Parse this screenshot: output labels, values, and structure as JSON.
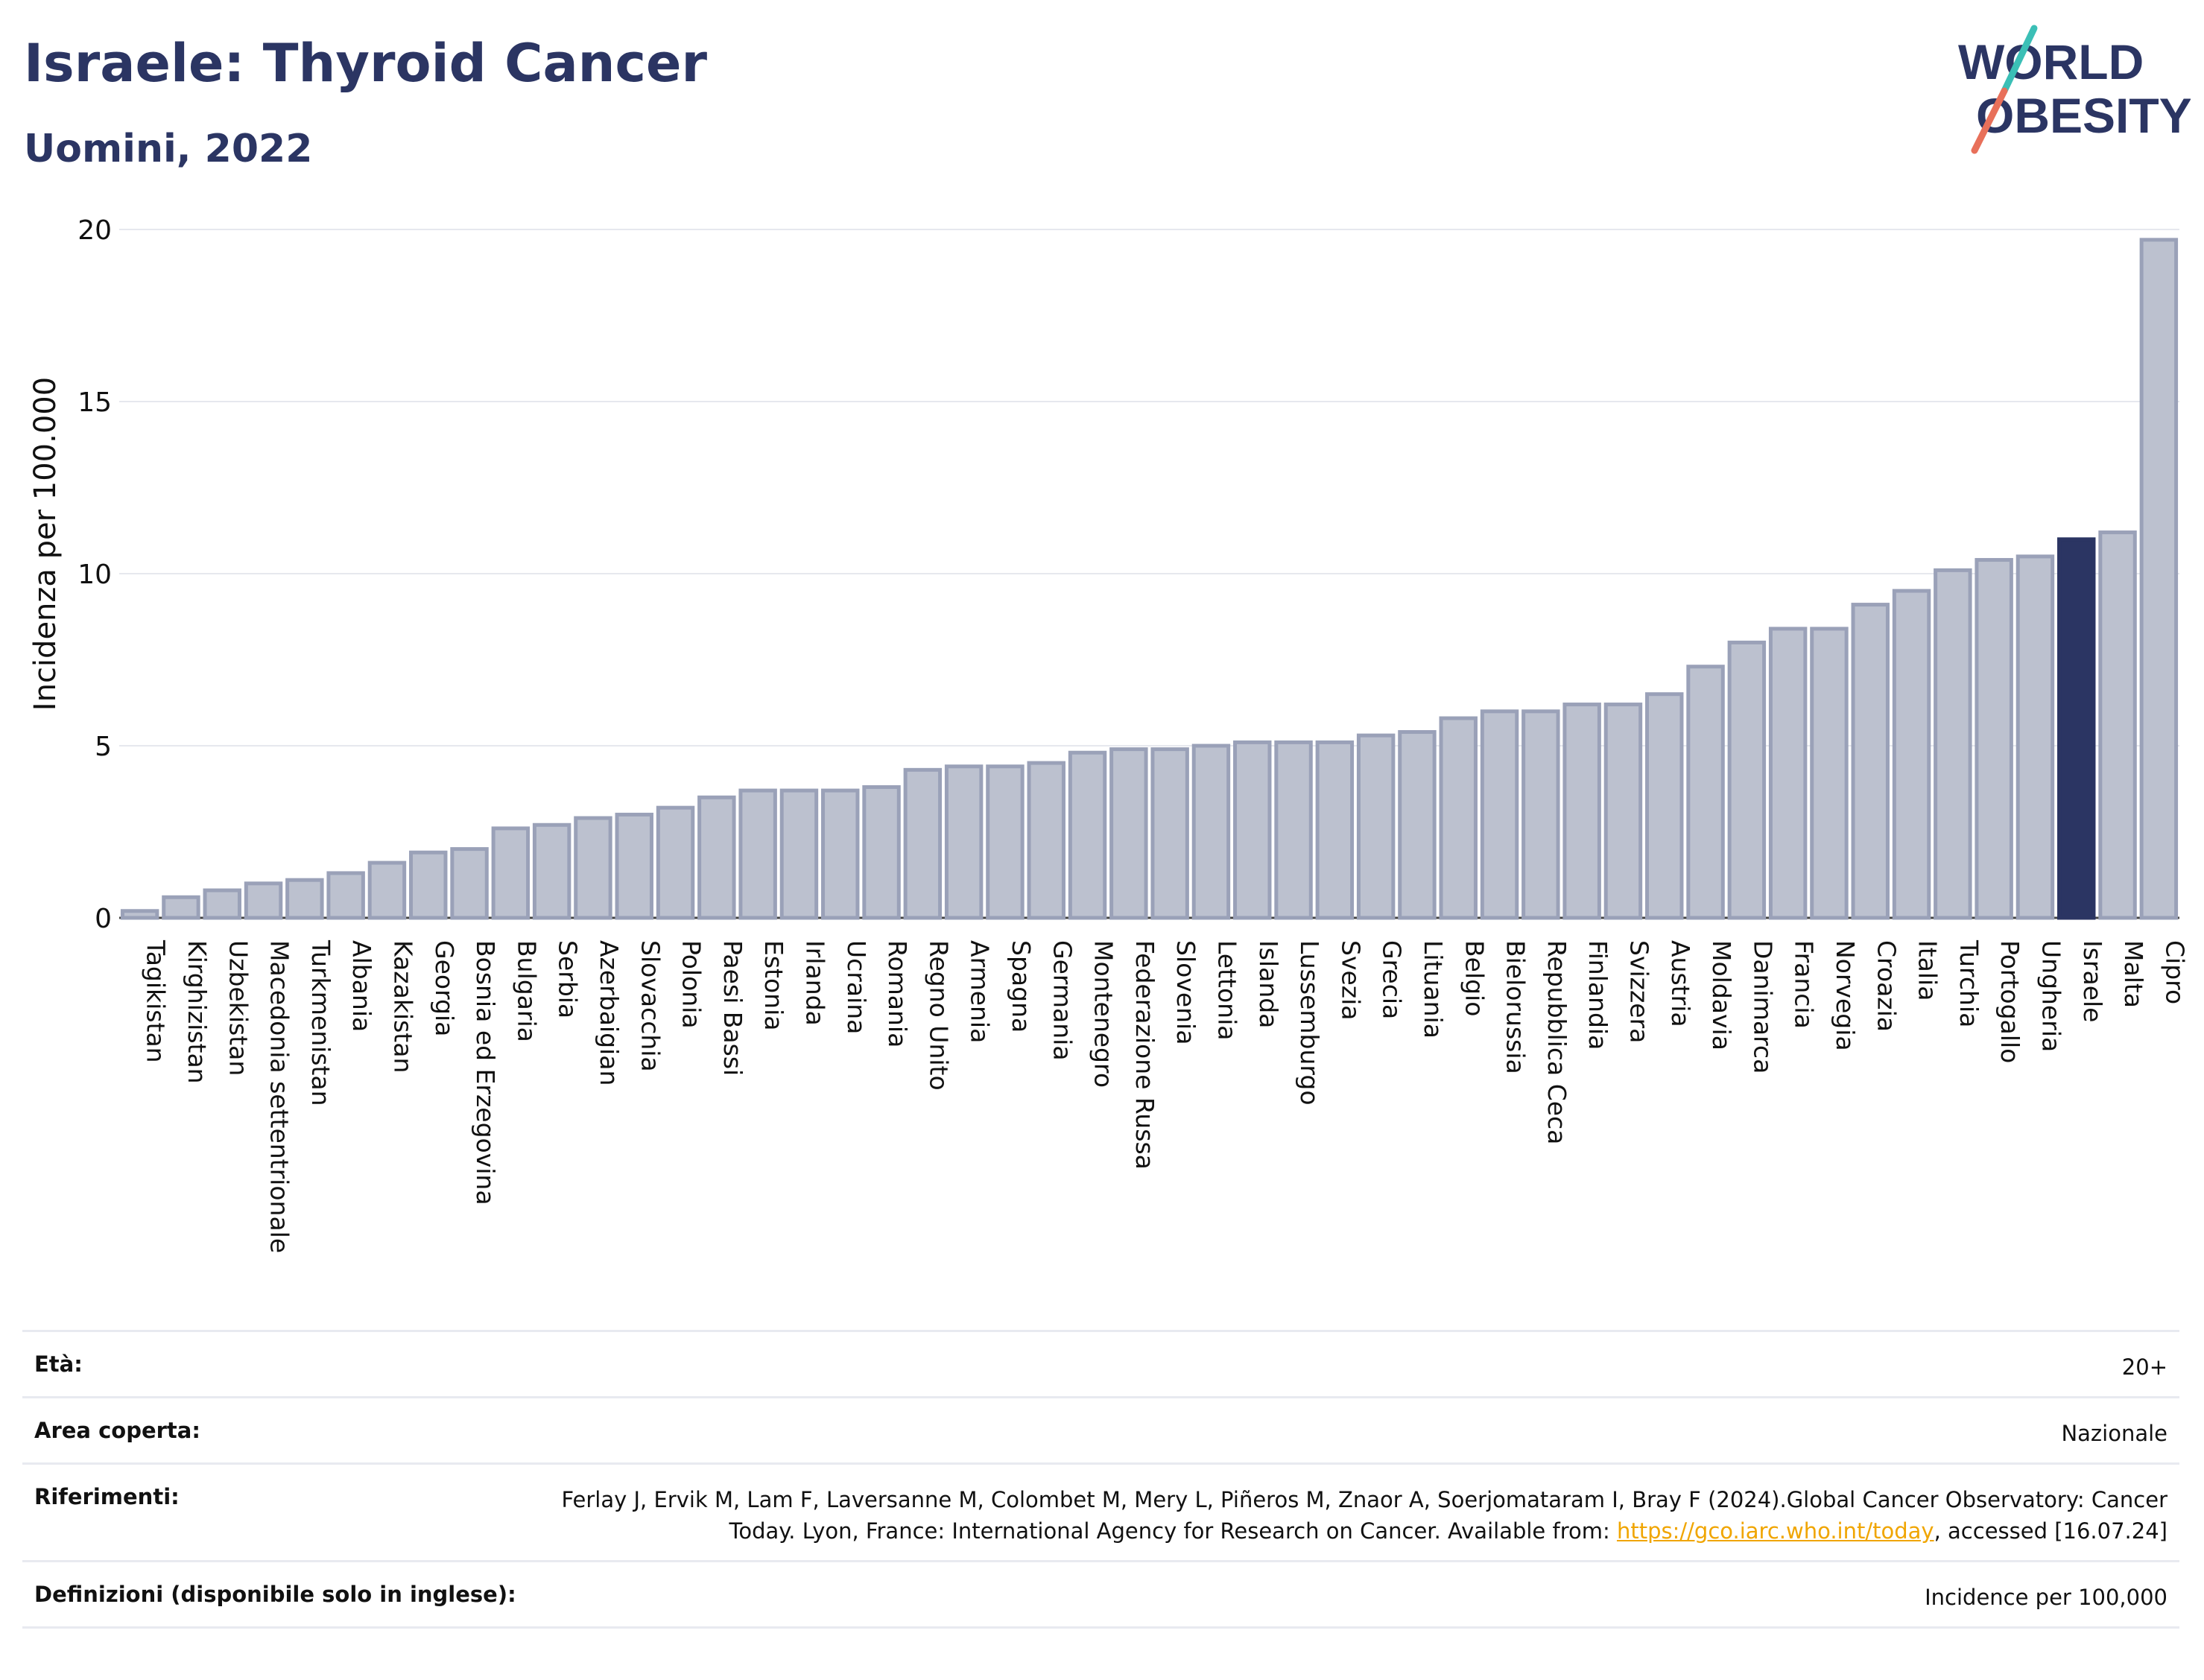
{
  "header": {
    "title": "Israele: Thyroid Cancer",
    "subtitle": "Uomini, 2022"
  },
  "logo": {
    "line1": "WORLD",
    "line2": "OBESITY",
    "colors": {
      "text": "#2b3563",
      "slash_red": "#e8705a",
      "slash_teal": "#3bbfb6"
    }
  },
  "colors": {
    "bar": "#bcc1cf",
    "bar_border": "#9aa1b8",
    "highlight": "#2b3563",
    "grid": "#e6e8ee"
  },
  "chart_data": {
    "type": "bar",
    "title": "",
    "ylabel": "Incidenza per 100.000",
    "xlabel": "",
    "ylim": [
      0,
      20
    ],
    "yticks": [
      0,
      5,
      10,
      15,
      20
    ],
    "grid": true,
    "highlight": "Israele",
    "categories": [
      "Tagikistan",
      "Kirghizistan",
      "Uzbekistan",
      "Macedonia settentrionale",
      "Turkmenistan",
      "Albania",
      "Kazakistan",
      "Georgia",
      "Bosnia ed Erzegovina",
      "Bulgaria",
      "Serbia",
      "Azerbaigian",
      "Slovacchia",
      "Polonia",
      "Paesi Bassi",
      "Estonia",
      "Irlanda",
      "Ucraina",
      "Romania",
      "Regno Unito",
      "Armenia",
      "Spagna",
      "Germania",
      "Montenegro",
      "Federazione Russa",
      "Slovenia",
      "Lettonia",
      "Islanda",
      "Lussemburgo",
      "Svezia",
      "Grecia",
      "Lituania",
      "Belgio",
      "Bielorussia",
      "Repubblica Ceca",
      "Finlandia",
      "Svizzera",
      "Austria",
      "Moldavia",
      "Danimarca",
      "Francia",
      "Norvegia",
      "Croazia",
      "Italia",
      "Turchia",
      "Portogallo",
      "Ungheria",
      "Israele",
      "Malta",
      "Cipro"
    ],
    "values": [
      0.2,
      0.6,
      0.8,
      1.0,
      1.1,
      1.3,
      1.6,
      1.9,
      2.0,
      2.6,
      2.7,
      2.9,
      3.0,
      3.2,
      3.5,
      3.7,
      3.7,
      3.7,
      3.8,
      4.3,
      4.4,
      4.4,
      4.5,
      4.8,
      4.9,
      4.9,
      5.0,
      5.1,
      5.1,
      5.1,
      5.3,
      5.4,
      5.8,
      6.0,
      6.0,
      6.2,
      6.2,
      6.5,
      7.3,
      8.0,
      8.4,
      8.4,
      9.1,
      9.5,
      10.1,
      10.4,
      10.5,
      11.0,
      11.2,
      19.7
    ]
  },
  "info": {
    "age_label": "Età:",
    "age_value": "20+",
    "area_label": "Area coperta:",
    "area_value": "Nazionale",
    "ref_label": "Riferimenti:",
    "ref_text_before": "Ferlay J, Ervik M, Lam F, Laversanne M, Colombet M, Mery L, Piñeros M, Znaor A, Soerjomataram I, Bray F (2024).Global Cancer Observatory: Cancer Today. Lyon, France: International Agency for Research on Cancer. Available from: ",
    "ref_link": "https://gco.iarc.who.int/today",
    "ref_text_after": ", accessed [16.07.24]",
    "def_label": "Definizioni (disponibile solo in inglese):",
    "def_value": "Incidence per 100,000"
  }
}
